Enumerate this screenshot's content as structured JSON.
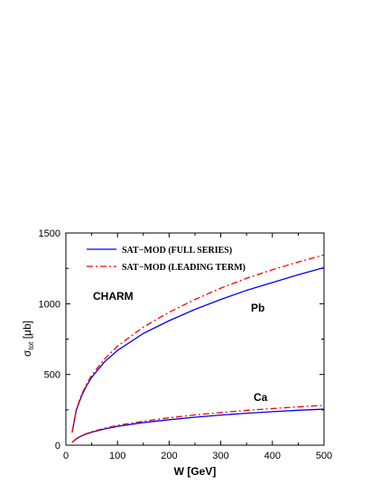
{
  "chart_data": {
    "type": "line",
    "xlabel": "W [GeV]",
    "ylabel_main": "σ",
    "ylabel_sub": "tot",
    "ylabel_unit": " [μb]",
    "xlim": [
      0,
      500
    ],
    "ylim": [
      0,
      1500
    ],
    "xticks": [
      0,
      100,
      200,
      300,
      400,
      500
    ],
    "yticks": [
      0,
      500,
      1000,
      1500
    ],
    "grid": false,
    "legend_position": "top-left",
    "annotations": [
      "CHARM",
      "Pb",
      "Ca"
    ],
    "series": [
      {
        "name": "SAT−MOD (FULL SERIES)",
        "group": "Pb",
        "style": "solid",
        "color": "#0000ff",
        "x": [
          12,
          20,
          30,
          40,
          50,
          75,
          100,
          150,
          200,
          250,
          300,
          350,
          400,
          450,
          500
        ],
        "y": [
          90,
          245,
          345,
          420,
          480,
          590,
          670,
          790,
          880,
          960,
          1030,
          1095,
          1150,
          1205,
          1255
        ]
      },
      {
        "name": "SAT−MOD (LEADING TERM)",
        "group": "Pb",
        "style": "dashdot",
        "color": "#ff0000",
        "x": [
          12,
          20,
          30,
          40,
          50,
          75,
          100,
          150,
          200,
          250,
          300,
          350,
          400,
          450,
          500
        ],
        "y": [
          90,
          250,
          355,
          430,
          495,
          610,
          700,
          835,
          940,
          1030,
          1110,
          1180,
          1240,
          1295,
          1345
        ]
      },
      {
        "name": "SAT−MOD (FULL SERIES)",
        "group": "Ca",
        "style": "solid",
        "color": "#0000ff",
        "x": [
          12,
          20,
          30,
          40,
          50,
          75,
          100,
          150,
          200,
          250,
          300,
          350,
          400,
          450,
          500
        ],
        "y": [
          20,
          45,
          65,
          80,
          92,
          115,
          133,
          160,
          180,
          198,
          213,
          226,
          237,
          247,
          255
        ]
      },
      {
        "name": "SAT−MOD (LEADING TERM)",
        "group": "Ca",
        "style": "dashdot",
        "color": "#ff0000",
        "x": [
          12,
          20,
          30,
          40,
          50,
          75,
          100,
          150,
          200,
          250,
          300,
          350,
          400,
          450,
          500
        ],
        "y": [
          20,
          46,
          67,
          82,
          95,
          120,
          140,
          170,
          194,
          214,
          231,
          246,
          259,
          271,
          282
        ]
      }
    ],
    "legend": [
      {
        "label": "SAT−MOD (FULL SERIES)",
        "style": "solid",
        "color": "#0000ff"
      },
      {
        "label": "SAT−MOD (LEADING TERM)",
        "style": "dashdot",
        "color": "#ff0000"
      }
    ]
  }
}
